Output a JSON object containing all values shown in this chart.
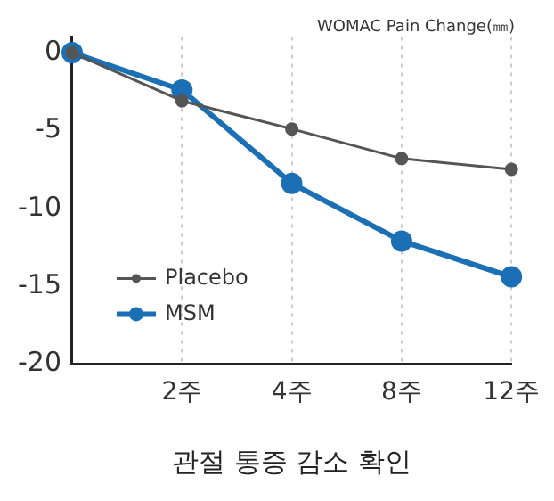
{
  "chart_data": {
    "type": "line",
    "title": "WOMAC Pain Change(㎜)",
    "xlabel": "관절 통증 감소 확인",
    "categories": [
      null,
      "2주",
      "4주",
      "8주",
      "12주"
    ],
    "series": [
      {
        "name": "Placebo",
        "color": "#555555",
        "values": [
          0,
          -3.1,
          -4.9,
          -6.8,
          -7.5
        ]
      },
      {
        "name": "MSM",
        "color": "#1a6fb5",
        "values": [
          0,
          -2.4,
          -8.4,
          -12.1,
          -14.4
        ]
      }
    ],
    "ylim": [
      -20,
      1
    ],
    "yticks": [
      0,
      -5,
      -10,
      -15,
      -20
    ],
    "grid": "x",
    "legend": "bottom left",
    "marker": "circle",
    "line_style": "solid"
  }
}
